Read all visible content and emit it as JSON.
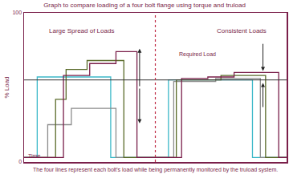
{
  "chart_data": {
    "type": "line",
    "line_style": "step",
    "title": "Graph to compare loading of a four bolt flange using torque and truload",
    "ylabel": "% Load",
    "xlabel": "Time",
    "caption": "The four lines represent each bolt's load while being permanently monitored by the truload system.",
    "annotations": [
      "Large Spread of Loads",
      "Consistent Loads"
    ],
    "required_load": {
      "label": "Required Load",
      "value": 55
    },
    "xlim": [
      0,
      100
    ],
    "ylim": [
      0,
      100
    ],
    "yticks": [
      0,
      100
    ],
    "tick_labels": "y",
    "grid": false,
    "series": [
      {
        "color": "#3cb8c8",
        "x": [
          0,
          5,
          33,
          55,
          87,
          100
        ],
        "values": [
          3,
          57,
          3,
          55,
          3,
          3
        ]
      },
      {
        "color": "#8c8c8c",
        "x": [
          0,
          9,
          18,
          35,
          57,
          73,
          90,
          100
        ],
        "values": [
          3,
          25,
          36,
          3,
          54,
          56,
          3,
          3
        ]
      },
      {
        "color": "#5a6b2a",
        "x": [
          0,
          12,
          16,
          24,
          38,
          58,
          75,
          92,
          100
        ],
        "values": [
          3,
          42,
          62,
          68,
          3,
          55,
          58,
          3,
          3
        ]
      },
      {
        "color": "#7a1f4a",
        "x": [
          0,
          15,
          25,
          35,
          43,
          60,
          70,
          80,
          97,
          100
        ],
        "values": [
          3,
          58,
          66,
          74,
          3,
          56,
          57,
          60,
          3,
          3
        ]
      }
    ]
  }
}
